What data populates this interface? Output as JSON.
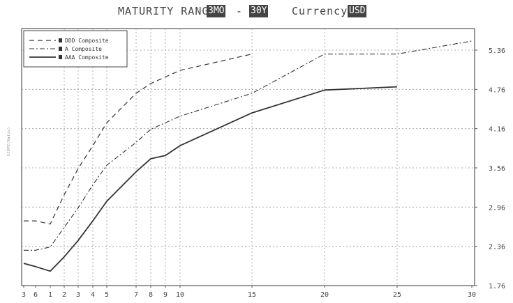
{
  "title": {
    "prefix": "MATURITY RANGE",
    "range_start": "3MO",
    "separator": "-",
    "range_end": "30Y",
    "currency_label": "Currency",
    "currency_value": "USD"
  },
  "side_label": "SCOPE(Ratio)",
  "chart_data": {
    "type": "line",
    "title": "MATURITY RANGE 3MO - 30Y",
    "xlabel": "",
    "ylabel": "",
    "x_tick_labels": [
      "3",
      "6",
      "1",
      "2",
      "3",
      "4",
      "5",
      "7",
      "8",
      "9",
      "10",
      "15",
      "20",
      "25",
      "30"
    ],
    "x_tick_years": [
      0.25,
      0.5,
      1,
      2,
      3,
      4,
      5,
      7,
      8,
      9,
      10,
      15,
      20,
      25,
      30
    ],
    "y_tick_labels": [
      "1.76",
      "2.36",
      "2.96",
      "3.56",
      "4.16",
      "4.76",
      "5.36"
    ],
    "ylim": [
      1.76,
      5.66
    ],
    "grid": true,
    "legend_position": "top-left",
    "series": [
      {
        "name": "DDD Composite",
        "style": "dashed",
        "x": [
          0.25,
          0.5,
          1,
          2,
          3,
          4,
          5,
          7,
          8,
          9,
          10,
          15
        ],
        "y": [
          2.75,
          2.75,
          2.7,
          3.15,
          3.55,
          3.9,
          4.25,
          4.7,
          4.85,
          4.95,
          5.05,
          5.3
        ]
      },
      {
        "name": "A Composite",
        "style": "dash-dot",
        "x": [
          0.25,
          0.5,
          1,
          2,
          3,
          4,
          5,
          7,
          8,
          9,
          10,
          15,
          20,
          25,
          30
        ],
        "y": [
          2.3,
          2.3,
          2.35,
          2.65,
          2.95,
          3.3,
          3.6,
          3.95,
          4.15,
          4.25,
          4.35,
          4.7,
          5.3,
          5.3,
          5.5
        ]
      },
      {
        "name": "AAA Composite",
        "style": "solid",
        "x": [
          0.25,
          0.5,
          1,
          2,
          3,
          4,
          5,
          7,
          8,
          9,
          10,
          15,
          20,
          25
        ],
        "y": [
          2.1,
          2.05,
          1.98,
          2.2,
          2.45,
          2.75,
          3.05,
          3.5,
          3.7,
          3.75,
          3.9,
          4.4,
          4.75,
          4.8
        ]
      }
    ]
  },
  "colors": {
    "line": "#333333",
    "grid": "#9a9a9a",
    "frame": "#555555"
  }
}
